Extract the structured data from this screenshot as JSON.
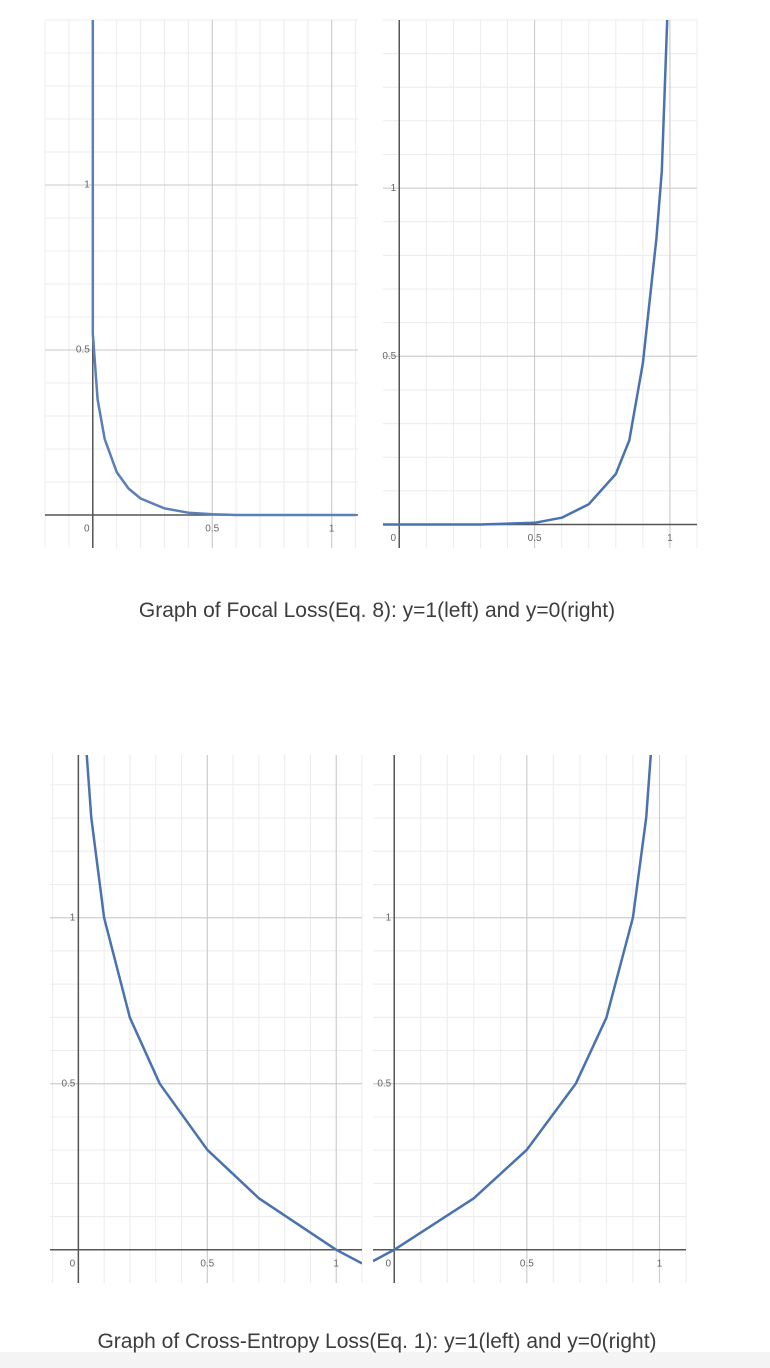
{
  "chart_data": [
    {
      "type": "line",
      "x": [
        0,
        0,
        0.02,
        0.05,
        0.1,
        0.15,
        0.2,
        0.3,
        0.4,
        0.5,
        0.6,
        0.8,
        1.1
      ],
      "values": [
        1.5,
        0.55,
        0.35,
        0.23,
        0.13,
        0.08,
        0.05,
        0.02,
        0.007,
        0.002,
        0,
        0,
        0
      ],
      "color": "#5b7fb8",
      "xlim": [
        -0.2,
        1.11
      ],
      "ylim": [
        -0.1,
        1.5
      ],
      "xticks": [
        0,
        0.5,
        1
      ],
      "yticks": [
        0.5,
        1
      ],
      "grid": true,
      "minor_grid": true
    },
    {
      "type": "line",
      "x": [
        -0.06,
        0.3,
        0.5,
        0.6,
        0.7,
        0.8,
        0.85,
        0.9,
        0.95,
        0.97,
        0.99
      ],
      "values": [
        0,
        0,
        0.005,
        0.02,
        0.06,
        0.15,
        0.25,
        0.48,
        0.85,
        1.05,
        1.5
      ],
      "color": "#4a72b0",
      "xlim": [
        -0.06,
        1.1
      ],
      "ylim": [
        -0.07,
        1.5
      ],
      "xticks": [
        0,
        0.5,
        1
      ],
      "yticks": [
        0.5,
        1
      ],
      "grid": true,
      "minor_grid": true
    },
    {
      "type": "line",
      "x": [
        0.0316,
        0.05,
        0.1,
        0.2,
        0.316,
        0.5,
        0.7,
        1,
        1.1
      ],
      "values": [
        1.5,
        1.301,
        1,
        0.699,
        0.5,
        0.301,
        0.155,
        0,
        -0.041
      ],
      "color": "#4a72b0",
      "xlim": [
        -0.11,
        1.1
      ],
      "ylim": [
        -0.1,
        1.49
      ],
      "xticks": [
        0,
        0.5,
        1
      ],
      "yticks": [
        0.5,
        1
      ],
      "grid": true,
      "minor_grid": true
    },
    {
      "type": "line",
      "x": [
        -0.08,
        0,
        0.3,
        0.5,
        0.684,
        0.8,
        0.9,
        0.95,
        0.968
      ],
      "values": [
        -0.034,
        0,
        0.155,
        0.301,
        0.5,
        0.699,
        1,
        1.301,
        1.5
      ],
      "color": "#4a72b0",
      "xlim": [
        -0.08,
        1.1
      ],
      "ylim": [
        -0.1,
        1.49
      ],
      "xticks": [
        0,
        0.5,
        1
      ],
      "yticks": [
        0.5,
        1
      ],
      "grid": true,
      "minor_grid": true
    }
  ],
  "captions": [
    "Graph of Focal Loss(Eq. 8): y=1(left) and y=0(right)",
    "Graph of Cross-Entropy Loss(Eq. 1): y=1(left) and y=0(right)"
  ]
}
